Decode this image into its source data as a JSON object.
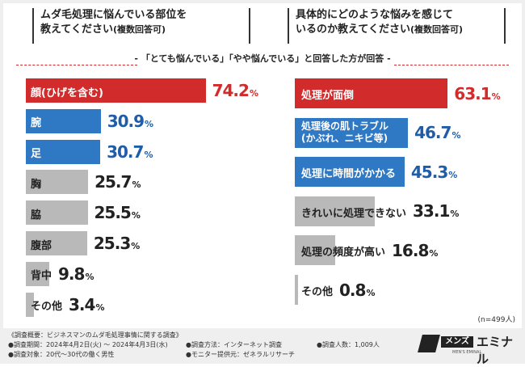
{
  "left": {
    "question_line1": "ムダ毛処理に悩んでいる部位を",
    "question_line2": "教えてください",
    "question_note": "(複数回答可)"
  },
  "right": {
    "question_line1": "具体的にどのような悩みを感じて",
    "question_line2": "いるのか教えてください",
    "question_note": "(複数回答可)"
  },
  "subtitle": "- 「とても悩んでいる」「やや悩んでいる」と回答した方が回答 -",
  "sample_size": "(n=499人)",
  "pct_unit": "%",
  "colors": {
    "red": "#d12b2b",
    "blue": "#2f78c4",
    "gray": "#b9b9b9"
  },
  "chart_data": [
    {
      "type": "bar",
      "orientation": "horizontal",
      "title": "ムダ毛処理に悩んでいる部位を教えてください(複数回答可)",
      "categories": [
        "顔(ひげを含む)",
        "腕",
        "足",
        "胸",
        "脇",
        "腹部",
        "背中",
        "その他"
      ],
      "values": [
        74.2,
        30.9,
        30.7,
        25.7,
        25.5,
        25.3,
        9.8,
        3.4
      ],
      "labels": [
        "74.2",
        "30.9",
        "30.7",
        "25.7",
        "25.5",
        "25.3",
        "9.8",
        "3.4"
      ],
      "styles": [
        "red",
        "blue",
        "blue",
        "gray",
        "gray",
        "gray",
        "gray",
        "gray"
      ],
      "xlim": [
        0,
        100
      ],
      "unit": "%"
    },
    {
      "type": "bar",
      "orientation": "horizontal",
      "title": "具体的にどのような悩みを感じているのか教えてください(複数回答可)",
      "categories": [
        "処理が面倒",
        "処理後の肌トラブル\n(かぶれ、ニキビ等)",
        "処理に時間がかかる",
        "きれいに処理できない",
        "処理の頻度が高い",
        "その他"
      ],
      "values": [
        63.1,
        46.7,
        45.3,
        33.1,
        16.8,
        0.8
      ],
      "labels": [
        "63.1",
        "46.7",
        "45.3",
        "33.1",
        "16.8",
        "0.8"
      ],
      "styles": [
        "red",
        "blue",
        "blue",
        "gray",
        "gray",
        "gray"
      ],
      "xlim": [
        0,
        100
      ],
      "unit": "%"
    }
  ],
  "footer": {
    "col1": [
      "《調査概要：ビジネスマンのムダ毛処理事情に関する調査》",
      "●調査期間：2024年4月2日(火) ～ 2024年4月3日(水)",
      "●調査対象：20代～30代の働く男性"
    ],
    "col2": [
      "●調査方法：インターネット調査",
      "●モニター提供元：ゼネラルリサーチ"
    ],
    "col3": [
      "●調査人数：1,009人"
    ]
  },
  "logo": {
    "badge": "メンズ",
    "name": "エミナル",
    "tagline": "MEN'S EMINAL"
  }
}
